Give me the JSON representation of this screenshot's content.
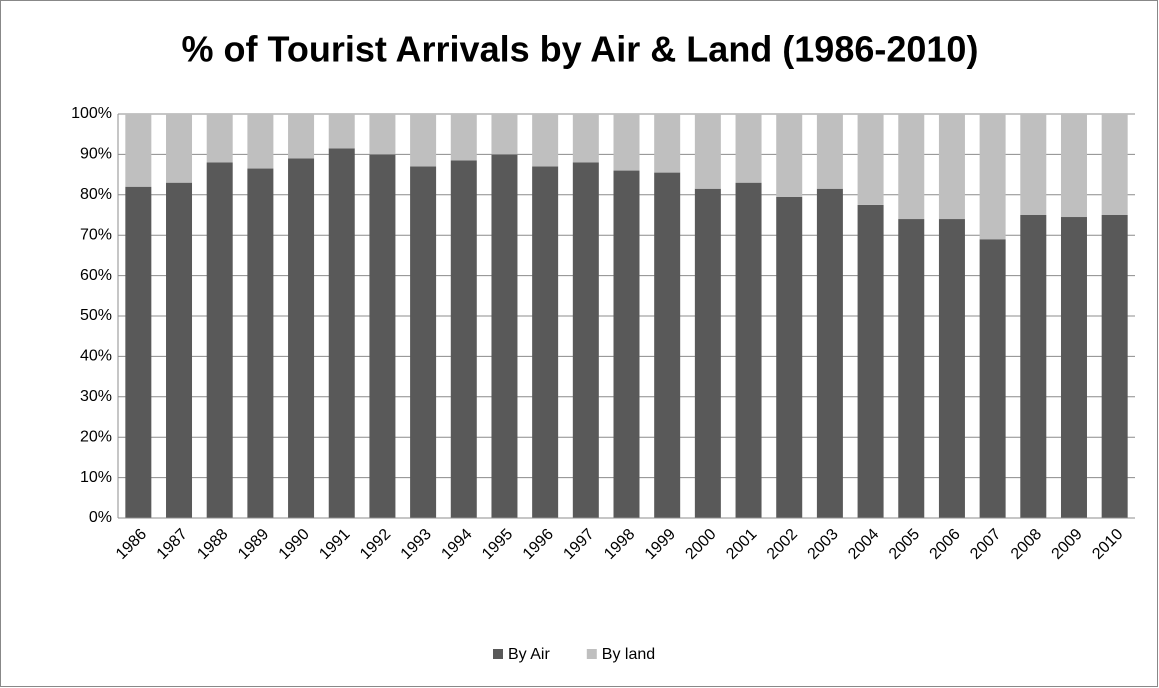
{
  "chart_data": {
    "type": "stacked_bar",
    "title": "% of Tourist Arrivals by Air & Land (1986-2010)",
    "categories": [
      "1986",
      "1987",
      "1988",
      "1989",
      "1990",
      "1991",
      "1992",
      "1993",
      "1994",
      "1995",
      "1996",
      "1997",
      "1998",
      "1999",
      "2000",
      "2001",
      "2002",
      "2003",
      "2004",
      "2005",
      "2006",
      "2007",
      "2008",
      "2009",
      "2010"
    ],
    "series": [
      {
        "name": "By Air",
        "color": "#595959",
        "values": [
          82,
          83,
          88,
          86.5,
          89,
          91.5,
          90,
          87,
          88.5,
          90,
          87,
          88,
          86,
          85.5,
          81.5,
          83,
          79.5,
          81.5,
          77.5,
          74,
          74,
          69,
          75,
          74.5,
          75
        ]
      },
      {
        "name": "By land",
        "color": "#bfbfbf",
        "values": [
          18,
          17,
          12,
          13.5,
          11,
          8.5,
          10,
          13,
          11.5,
          10,
          13,
          12,
          14,
          14.5,
          18.5,
          17,
          20.5,
          18.5,
          22.5,
          26,
          26,
          31,
          25,
          25.5,
          25
        ]
      }
    ],
    "ylim": [
      0,
      100
    ],
    "yticks": [
      {
        "value": 0,
        "label": "0%"
      },
      {
        "value": 10,
        "label": "10%"
      },
      {
        "value": 20,
        "label": "20%"
      },
      {
        "value": 30,
        "label": "30%"
      },
      {
        "value": 40,
        "label": "40%"
      },
      {
        "value": 50,
        "label": "50%"
      },
      {
        "value": 60,
        "label": "60%"
      },
      {
        "value": 70,
        "label": "70%"
      },
      {
        "value": 80,
        "label": "80%"
      },
      {
        "value": 90,
        "label": "90%"
      },
      {
        "value": 100,
        "label": "100%"
      }
    ],
    "grid": true,
    "legend": "bottom"
  }
}
